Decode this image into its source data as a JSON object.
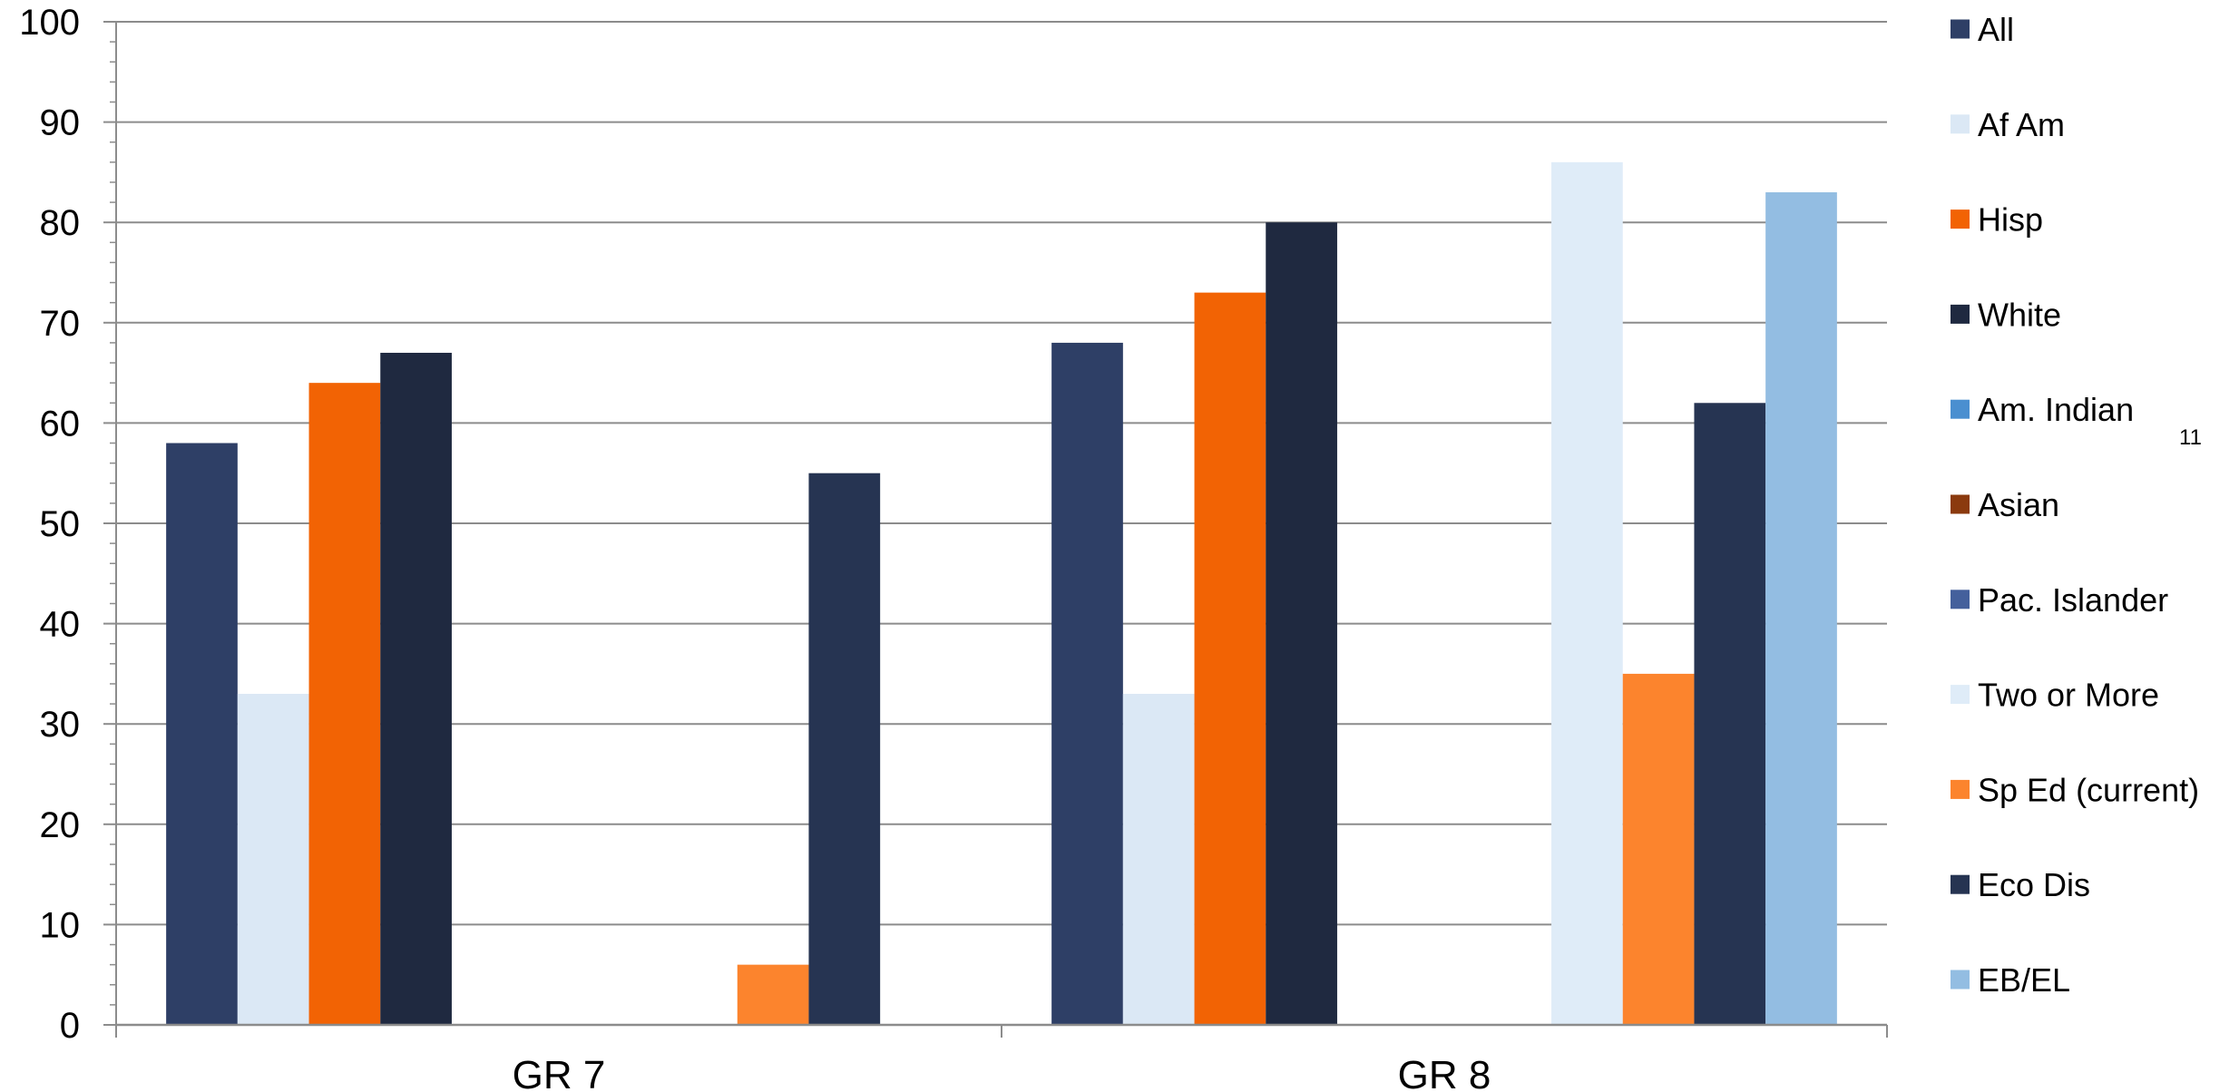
{
  "chart_data": {
    "type": "bar",
    "title": "",
    "xlabel": "",
    "ylabel": "",
    "ylim": [
      0,
      100
    ],
    "yticks": [
      0,
      10,
      20,
      30,
      40,
      50,
      60,
      70,
      80,
      90,
      100
    ],
    "grid": true,
    "legend_position": "right",
    "categories": [
      "GR 7",
      "GR 8"
    ],
    "series": [
      {
        "name": "All",
        "color": "#2e3f66",
        "values": [
          58,
          68
        ]
      },
      {
        "name": "Af Am",
        "color": "#dbe8f5",
        "values": [
          33,
          33
        ]
      },
      {
        "name": "Hisp",
        "color": "#f26304",
        "values": [
          64,
          73
        ]
      },
      {
        "name": "White",
        "color": "#1f2940",
        "values": [
          67,
          80
        ]
      },
      {
        "name": "Am. Indian",
        "color": "#4a8fd0",
        "values": [
          null,
          null
        ]
      },
      {
        "name": "Asian",
        "color": "#8b3a0e",
        "values": [
          null,
          null
        ]
      },
      {
        "name": "Pac. Islander",
        "color": "#44609c",
        "values": [
          null,
          null
        ]
      },
      {
        "name": "Two or More",
        "color": "#dfecf8",
        "values": [
          null,
          86
        ]
      },
      {
        "name": "Sp Ed (current)",
        "color": "#fc842d",
        "values": [
          6,
          35
        ]
      },
      {
        "name": "Eco Dis",
        "color": "#263452",
        "values": [
          55,
          62
        ]
      },
      {
        "name": "EB/EL",
        "color": "#93bde2",
        "values": [
          null,
          83
        ]
      }
    ]
  },
  "page_number": "11"
}
